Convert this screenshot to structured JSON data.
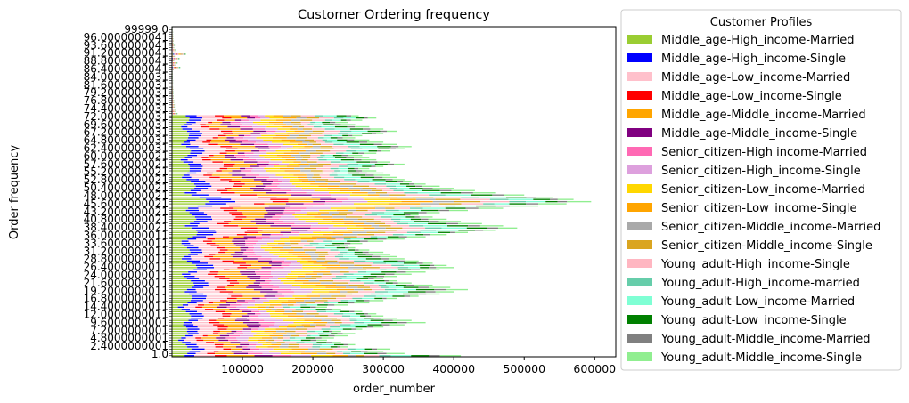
{
  "chart_data": {
    "type": "bar",
    "orientation": "horizontal",
    "stacked": true,
    "title": "Customer Ordering frequency",
    "xlabel": "order_number",
    "ylabel": "Order frequency",
    "xlim": [
      0,
      630000
    ],
    "xticks": [
      100000,
      200000,
      300000,
      400000,
      500000,
      600000
    ],
    "grid": false,
    "legend": {
      "title": "Customer Profiles",
      "placement": "outside-right"
    },
    "y_axis_note": "Tick labels are long float values that overlap into an illegible black mass; the top-most tick reads approximately '99999.0', the bottom-most approximately '1.0'.",
    "y_top_label": "99999.0",
    "y_bottom_label": "1.0",
    "n_categories": 150,
    "n_dense_categories": 110,
    "bar_totals": [
      410000,
      330000,
      300000,
      310000,
      250000,
      260000,
      240000,
      220000,
      230000,
      250000,
      260000,
      240000,
      270000,
      300000,
      330000,
      360000,
      340000,
      320000,
      300000,
      290000,
      270000,
      240000,
      220000,
      250000,
      280000,
      300000,
      320000,
      350000,
      380000,
      400000,
      420000,
      395000,
      370000,
      340000,
      320000,
      300000,
      320000,
      340000,
      360000,
      380000,
      400000,
      390000,
      370000,
      350000,
      330000,
      320000,
      310000,
      300000,
      280000,
      260000,
      250000,
      270000,
      300000,
      330000,
      360000,
      390000,
      420000,
      460000,
      490000,
      470000,
      440000,
      410000,
      390000,
      370000,
      350000,
      380000,
      420000,
      470000,
      520000,
      560000,
      595000,
      570000,
      540000,
      500000,
      460000,
      430000,
      400000,
      380000,
      360000,
      340000,
      330000,
      320000,
      310000,
      300000,
      290000,
      280000,
      300000,
      330000,
      310000,
      290000,
      280000,
      270000,
      290000,
      310000,
      330000,
      340000,
      320000,
      300000,
      280000,
      260000,
      270000,
      300000,
      320000,
      300000,
      280000,
      260000,
      250000,
      270000,
      290000,
      265000,
      8000,
      6000,
      5000,
      4000,
      4000,
      3000,
      3000,
      2500,
      2500,
      2000,
      2000,
      2000,
      1500,
      1500,
      1500,
      1500,
      1200,
      1200,
      1200,
      1000,
      2500,
      12000,
      6000,
      8000,
      3000,
      11000,
      4000,
      20000,
      6000,
      5000,
      3000,
      4000,
      2000,
      2500,
      2000,
      1800,
      1500,
      1500,
      1200,
      1000
    ],
    "series": [
      {
        "name": "Middle_age-High_income-Married",
        "color": "#9acd32",
        "share": 0.07
      },
      {
        "name": "Middle_age-High_income-Single",
        "color": "#0000ff",
        "share": 0.05
      },
      {
        "name": "Middle_age-Low_income-Married",
        "color": "#ffc0cb",
        "share": 0.08
      },
      {
        "name": "Middle_age-Low_income-Single",
        "color": "#ff0000",
        "share": 0.04
      },
      {
        "name": "Middle_age-Middle_income-Married",
        "color": "#ffa500",
        "share": 0.08
      },
      {
        "name": "Middle_age-Middle_income-Single",
        "color": "#800080",
        "share": 0.05
      },
      {
        "name": "Senior_citizen-High income-Married",
        "color": "#ff69b4",
        "share": 0.05
      },
      {
        "name": "Senior_citizen-High_income-Single",
        "color": "#dda0dd",
        "share": 0.06
      },
      {
        "name": "Senior_citizen-Low_income-Married",
        "color": "#ffd700",
        "share": 0.07
      },
      {
        "name": "Senior_citizen-Low_income-Single",
        "color": "#ffa500",
        "share": 0.06
      },
      {
        "name": "Senior_citizen-Middle_income-Married",
        "color": "#a9a9a9",
        "share": 0.04
      },
      {
        "name": "Senior_citizen-Middle_income-Single",
        "color": "#daa520",
        "share": 0.05
      },
      {
        "name": "Young_adult-High_income-Single",
        "color": "#ffb6c1",
        "share": 0.06
      },
      {
        "name": "Young_adult-High_income-married",
        "color": "#66cdaa",
        "share": 0.04
      },
      {
        "name": "Young_adult-Low_income-Married",
        "color": "#7fffd4",
        "share": 0.06
      },
      {
        "name": "Young_adult-Low_income-Single",
        "color": "#008000",
        "share": 0.05
      },
      {
        "name": "Young_adult-Middle_income-Married",
        "color": "#808080",
        "share": 0.03
      },
      {
        "name": "Young_adult-Middle_income-Single",
        "color": "#90ee90",
        "share": 0.06
      }
    ]
  }
}
